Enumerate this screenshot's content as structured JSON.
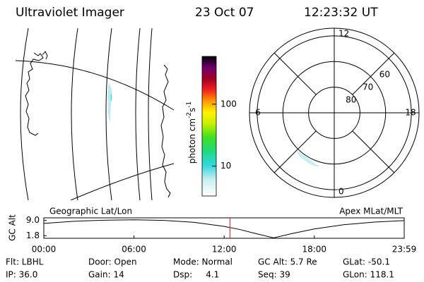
{
  "header": {
    "instrument": "Ultraviolet Imager",
    "date": "23 Oct 07",
    "time": "12:23:32 UT"
  },
  "colorbar": {
    "label_parts": [
      "photon cm",
      "-2",
      "s",
      "-1"
    ],
    "scale": "log",
    "lim": [
      3.3,
      590
    ],
    "ticks": [
      10,
      100
    ]
  },
  "polar": {
    "lat_lim": [
      57,
      90
    ],
    "lat_rings": [
      80,
      70,
      60
    ],
    "mlt_ticks": [
      12,
      18,
      6,
      0
    ]
  },
  "timeline": {
    "left_title": "Geographic Lat/Lon",
    "right_title": "Apex MLat/MLT",
    "ylabel": "GC Alt",
    "xlim": [
      0,
      23.983
    ],
    "ylim": [
      0.6,
      10.2
    ],
    "yticks": [
      {
        "value": 9,
        "label": "9.0"
      },
      1.8
    ],
    "xticks": [
      {
        "value": 0,
        "label": "00:00"
      },
      {
        "value": 6,
        "label": "06:00"
      },
      {
        "value": 12,
        "label": "12:00"
      },
      {
        "value": 18,
        "label": "18:00"
      },
      {
        "value": 23.983,
        "label": "23:59"
      }
    ],
    "x": [
      0,
      2,
      4,
      6,
      8,
      10,
      12,
      13,
      14,
      15.3,
      16.5,
      18,
      20,
      22,
      23.983
    ],
    "values": [
      7.6,
      8.6,
      9.1,
      9.3,
      9.0,
      8.1,
      6.2,
      4.8,
      3.0,
      0.8,
      2.8,
      5.0,
      7.0,
      8.2,
      8.9
    ],
    "current_time": 12.392,
    "current_color": "#e0201a"
  },
  "status": [
    [
      "Flt: LBHL",
      "IP: 36.0"
    ],
    [
      "Door: Open",
      "Gain: 14"
    ],
    [
      "Mode: Normal",
      "Dsp:     4.1"
    ],
    [
      "GC Alt: 5.7 Re",
      "Seq: 39"
    ],
    [
      "GLat: -50.1",
      "GLon: 118.1"
    ]
  ]
}
